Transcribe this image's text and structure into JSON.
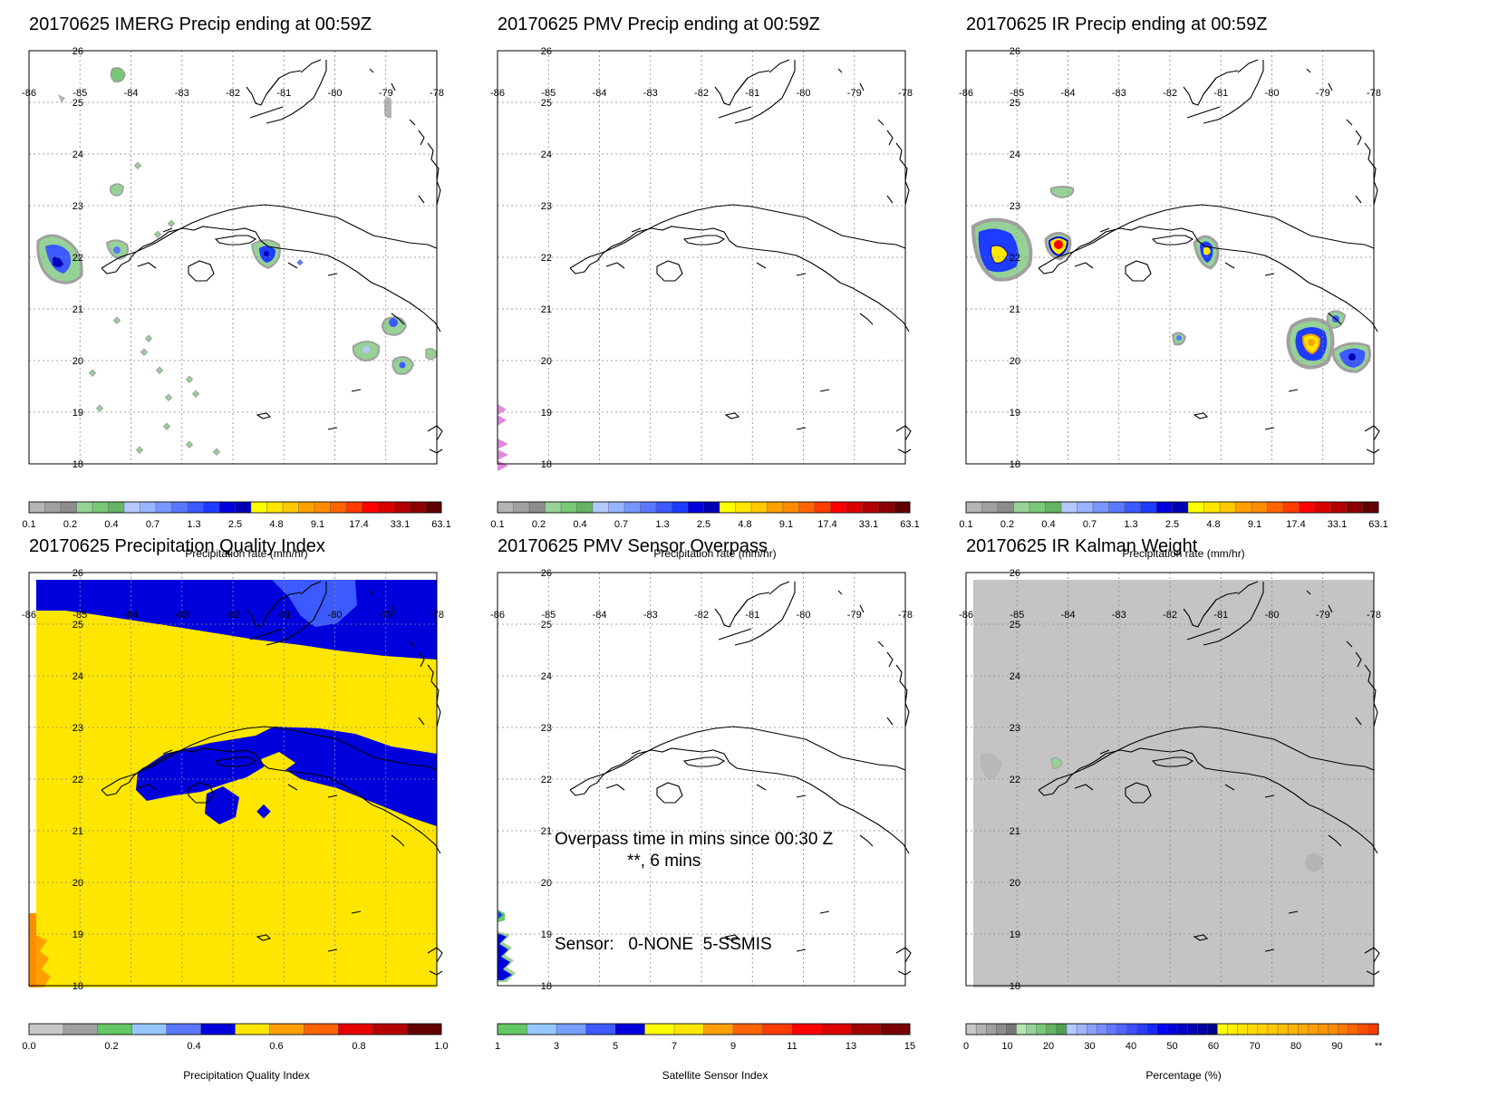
{
  "date": "20170625",
  "map": {
    "lon_ticks": [
      "-86",
      "-85",
      "-84",
      "-83",
      "-82",
      "-81",
      "-80",
      "-79",
      "-78"
    ],
    "lat_ticks": [
      "26",
      "25",
      "24",
      "23",
      "22",
      "21",
      "20",
      "19",
      "18"
    ]
  },
  "colorbars": {
    "precip": {
      "colors": [
        "#b4b4b4",
        "#a0a0a0",
        "#8c8c8c",
        "#96d296",
        "#78c878",
        "#64b464",
        "#b4c8ff",
        "#96b4ff",
        "#7896ff",
        "#5a78ff",
        "#3c5aff",
        "#1e3cff",
        "#0000dc",
        "#0000b4",
        "#ffff00",
        "#ffe600",
        "#ffc800",
        "#ffa000",
        "#ff8c00",
        "#ff6400",
        "#ff3c00",
        "#ff0000",
        "#dc0000",
        "#b40000",
        "#8c0000",
        "#600000"
      ],
      "ticks": [
        "0.1",
        "0.2",
        "0.4",
        "0.7",
        "1.3",
        "2.5",
        "4.8",
        "9.1",
        "17.4",
        "33.1",
        "63.1"
      ],
      "label": "Precipitation rate (mm/hr)"
    },
    "quality": {
      "colors": [
        "#c8c8c8",
        "#a0a0a0",
        "#64c864",
        "#96c8ff",
        "#5a78ff",
        "#0000dc",
        "#ffe600",
        "#ffa000",
        "#ff6400",
        "#e60000",
        "#b40000",
        "#640000"
      ],
      "ticks": [
        "0.0",
        "0.2",
        "0.4",
        "0.6",
        "0.8",
        "1.0"
      ],
      "label": "Precipitation Quality Index"
    },
    "sensor": {
      "colors": [
        "#64c864",
        "#96c8ff",
        "#78a0ff",
        "#3c5aff",
        "#0000dc",
        "#ffff00",
        "#ffe600",
        "#ffa000",
        "#ff6400",
        "#ff3c00",
        "#ff0000",
        "#dc0000",
        "#a00000",
        "#780000"
      ],
      "ticks": [
        "1",
        "3",
        "5",
        "7",
        "9",
        "11",
        "13",
        "15"
      ],
      "label": "Satellite Sensor Index"
    },
    "kalman": {
      "colors": [
        "#c8c8c8",
        "#b4b4b4",
        "#a0a0a0",
        "#8c8c8c",
        "#787878",
        "#b4e6b4",
        "#96d296",
        "#78c878",
        "#64b464",
        "#50a050",
        "#b4c8ff",
        "#a0b4ff",
        "#8ca0ff",
        "#788cff",
        "#6478ff",
        "#5064ff",
        "#3c50ff",
        "#283cff",
        "#1428ff",
        "#0000ff",
        "#0000dc",
        "#0000c8",
        "#0000b4",
        "#0000a0",
        "#00008c",
        "#ffff00",
        "#fff000",
        "#ffe600",
        "#ffdc00",
        "#ffd200",
        "#ffc800",
        "#ffbe00",
        "#ffb400",
        "#ffaa00",
        "#ffa000",
        "#ff9600",
        "#ff8c00",
        "#ff7800",
        "#ff6400",
        "#ff5000",
        "#ff3c00"
      ],
      "ticks": [
        "0",
        "10",
        "20",
        "30",
        "40",
        "50",
        "60",
        "70",
        "80",
        "90",
        "**"
      ],
      "label": "Percentage (%)"
    }
  },
  "panels": [
    {
      "title": "20170625 IMERG Precip ending at 00:59Z"
    },
    {
      "title": "20170625 PMV Precip ending at 00:59Z"
    },
    {
      "title": "20170625 IR Precip ending at 00:59Z"
    },
    {
      "title": "20170625 Precipitation Quality Index"
    },
    {
      "title": "20170625 PMV Sensor Overpass"
    },
    {
      "title": "20170625 IR Kalman Weight"
    }
  ],
  "overpass": {
    "line1": "Overpass time in mins since 00:30 Z",
    "line2": "**, 6 mins",
    "sensor_line": "Sensor:   0-NONE  5-SSMIS"
  }
}
